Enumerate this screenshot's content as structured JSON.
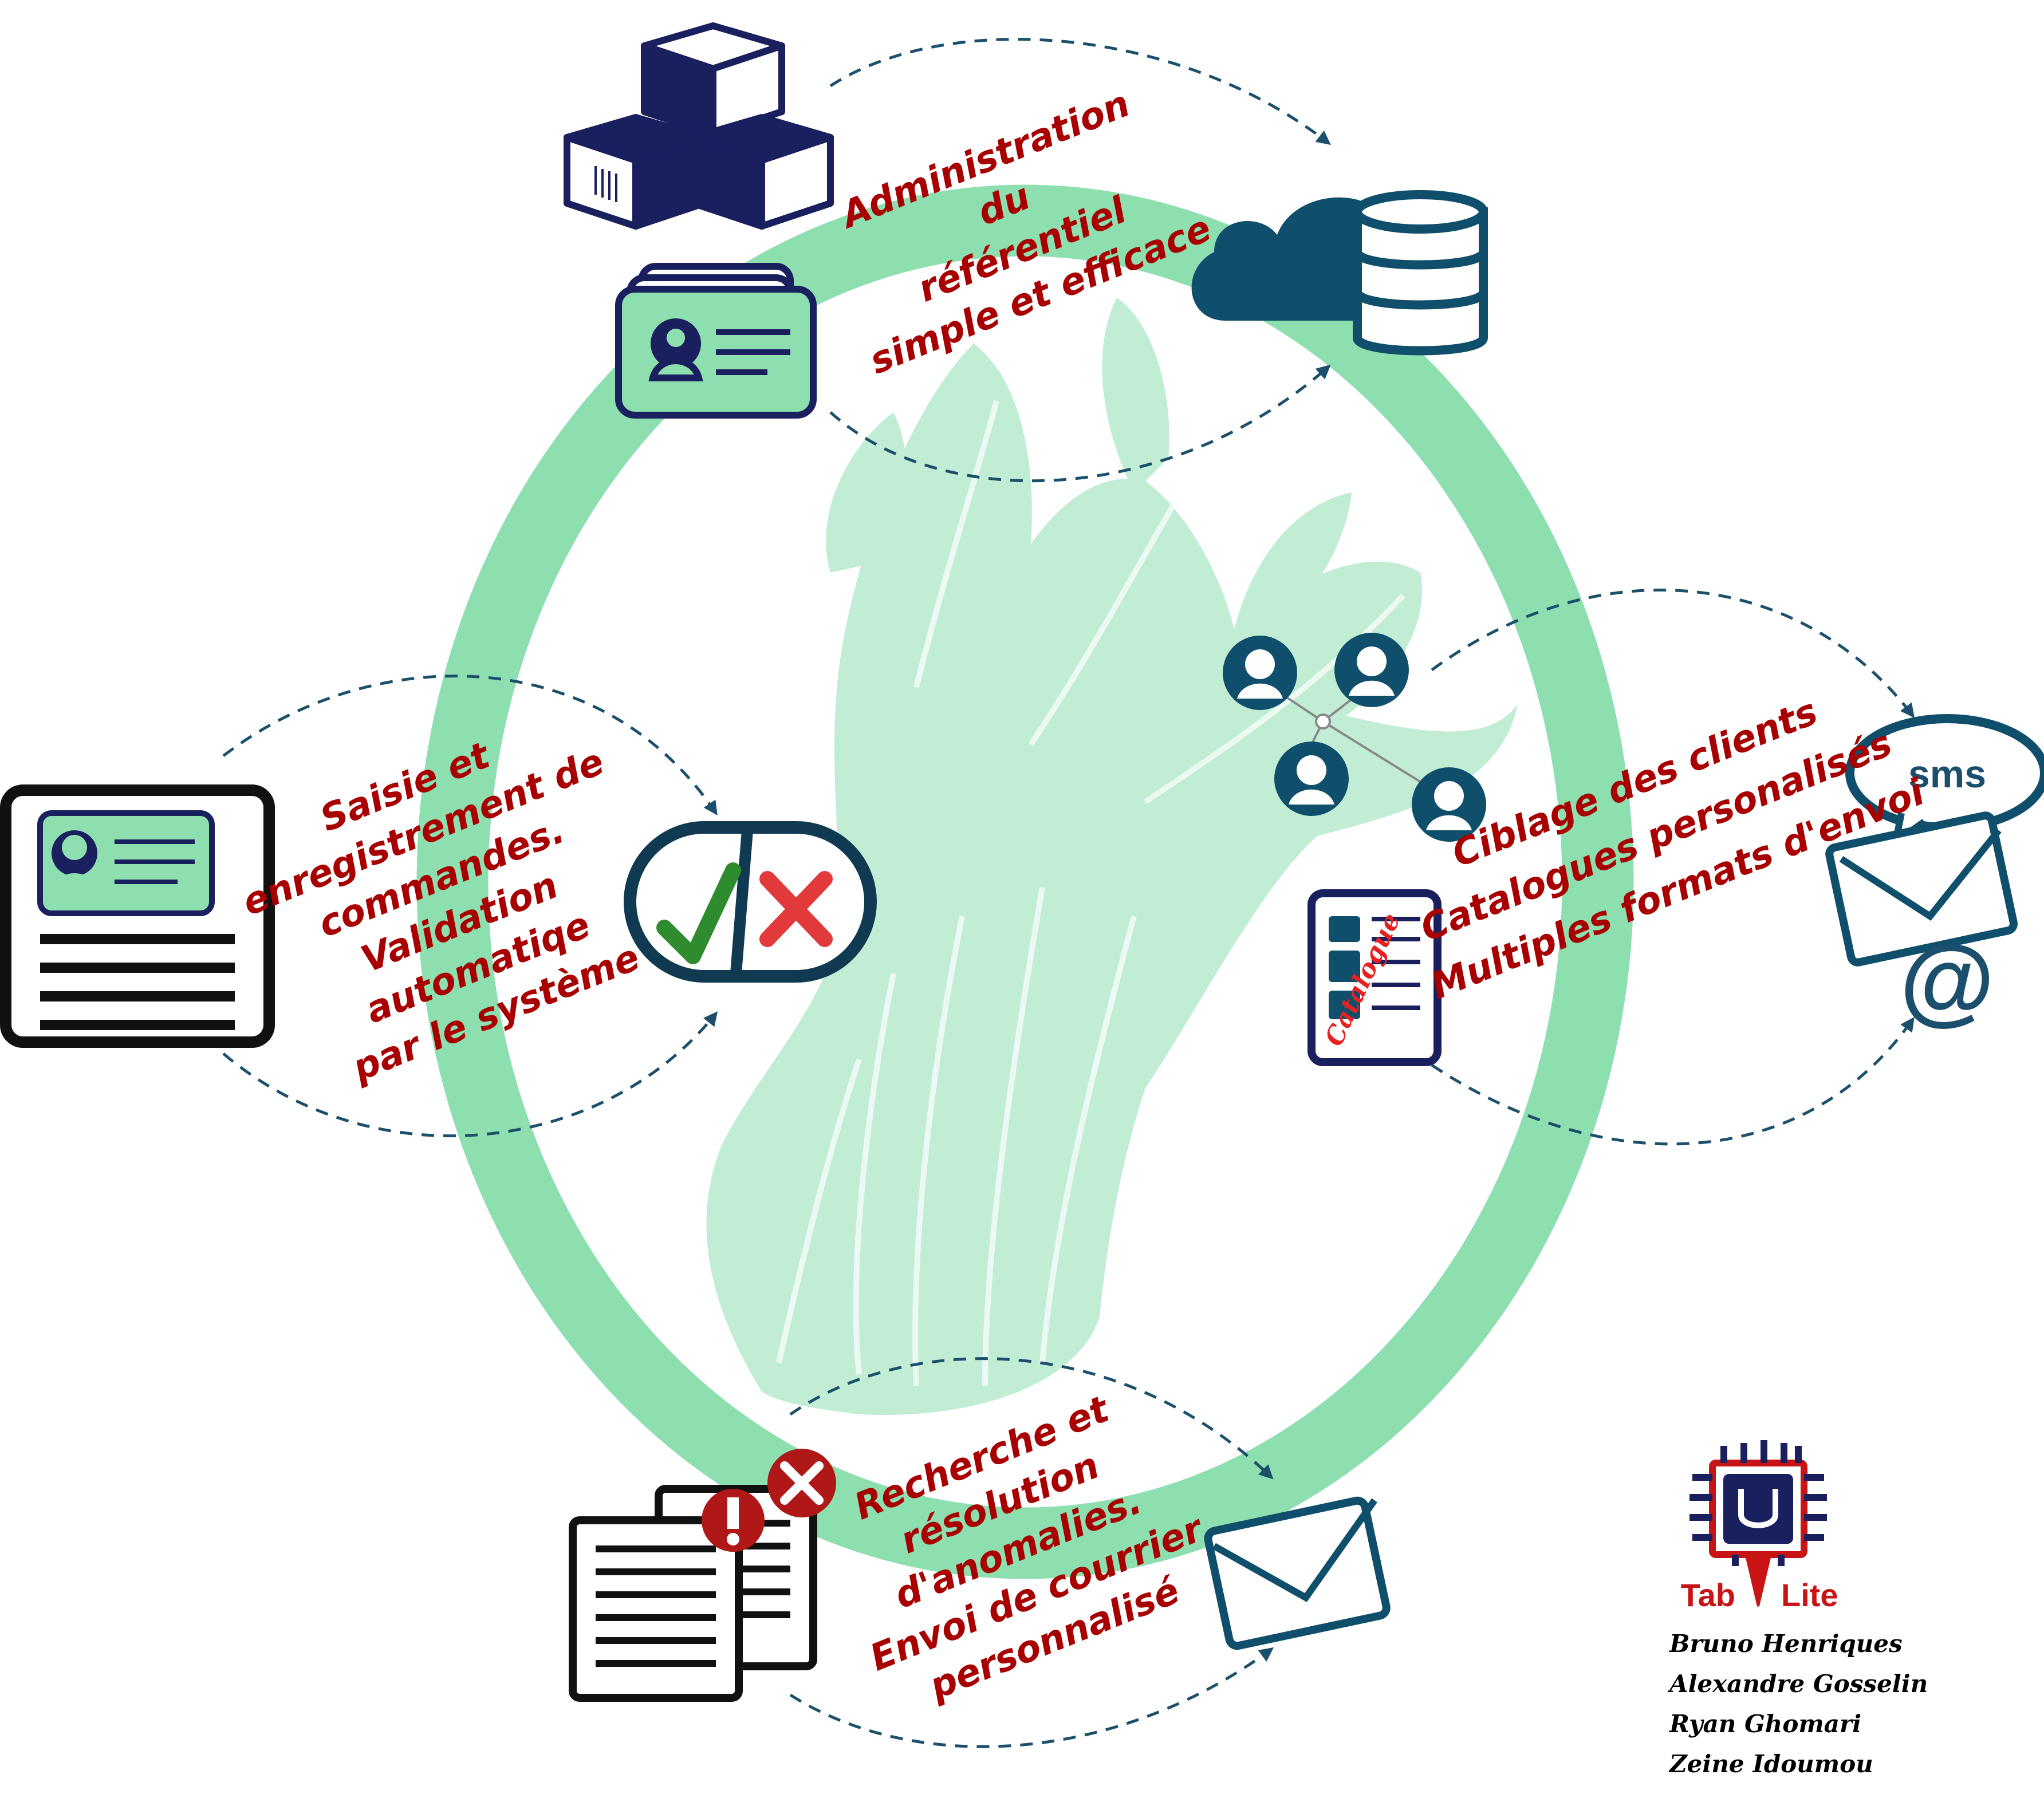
{
  "labels": {
    "admin": [
      "Administration",
      "du",
      "référentiel",
      "simple et efficace"
    ],
    "saisie": [
      "Saisie et",
      "enregistrement de",
      "commandes.",
      "Validation",
      "automatiqe",
      "par le système"
    ],
    "ciblage": [
      "Ciblage des clients",
      "Catalogues personalisés",
      "Multiples formats d'envoi"
    ],
    "recherche": [
      "Recherche et",
      "résolution",
      "d'anomalies.",
      "Envoi de courrier",
      "personnalisé"
    ]
  },
  "icons": {
    "sms_text": "sms",
    "catalogue_text": "Catalogue",
    "at_symbol": "@"
  },
  "brand": {
    "name_left": "Tab",
    "name_right": "Lite"
  },
  "authors": [
    "Bruno Henriques",
    "Alexandre Gosselin",
    "Ryan Ghomari",
    "Zeine Idoumou"
  ],
  "colors": {
    "ring": "#8edfb0",
    "icon_dark": "#1b4f6b",
    "navy": "#1a1f5e",
    "label_red": "#a80000",
    "check_green": "#2e8b2e",
    "cross_red": "#e23a3a"
  }
}
